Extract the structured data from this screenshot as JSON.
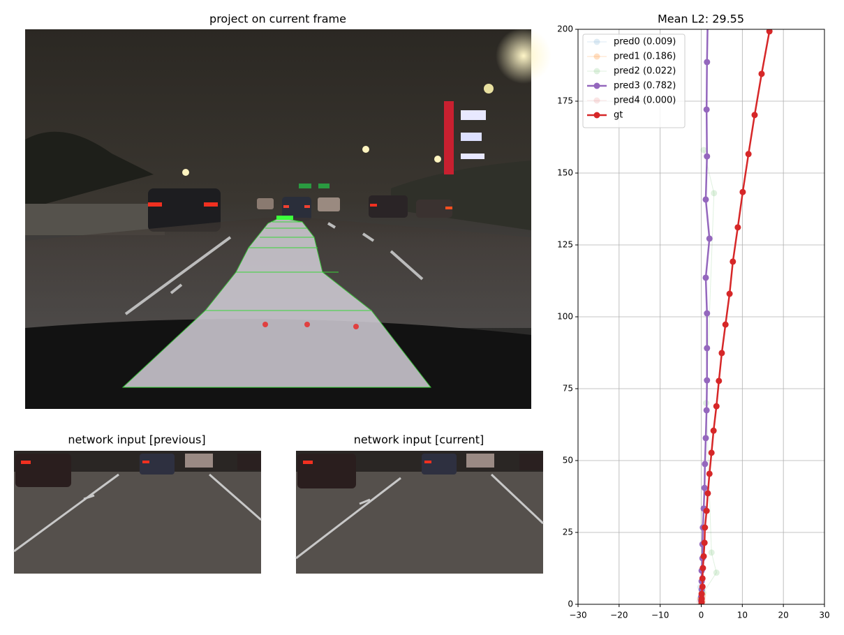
{
  "panels": {
    "main_title": "project on current frame",
    "previous_title": "network input [previous]",
    "current_title": "network input [current]"
  },
  "chart_data": {
    "type": "line",
    "title": "Mean L2: 29.55",
    "xlim": [
      -30,
      30
    ],
    "xticks": [
      {
        "value": -30,
        "label": "−30"
      },
      {
        "value": -20,
        "label": "−20"
      },
      {
        "value": -10,
        "label": "−10"
      },
      0,
      10,
      20,
      30
    ],
    "ylim": [
      0,
      200
    ],
    "yticks": [
      0,
      25,
      50,
      75,
      100,
      125,
      150,
      175,
      200
    ],
    "grid": true,
    "legend": "upper left",
    "series": [
      {
        "name": "pred0 (0.009)",
        "color": "#1f77b4",
        "alpha": 0.15,
        "x": [
          0,
          -0.3,
          0.2,
          -0.2
        ],
        "y": [
          0,
          2,
          4,
          6
        ]
      },
      {
        "name": "pred1 (0.186)",
        "color": "#ff7f0e",
        "alpha": 0.25,
        "x": [
          0,
          0.3,
          -0.2,
          0.4,
          0.1
        ],
        "y": [
          0,
          1,
          2,
          3,
          4
        ]
      },
      {
        "name": "pred2 (0.022)",
        "color": "#2ca02c",
        "alpha": 0.15,
        "x": [
          0,
          0.5,
          3.7,
          2.5,
          1.2,
          3.1,
          0.6
        ],
        "y": [
          0,
          4,
          11,
          18,
          70,
          143,
          158
        ]
      },
      {
        "name": "pred3 (0.782)",
        "color": "#9467bd",
        "alpha": 1,
        "x": [
          0,
          0,
          0.1,
          0.1,
          0.1,
          0.3,
          0.3,
          0.4,
          0.6,
          0.8,
          0.9,
          1.1,
          1.3,
          1.4,
          1.4,
          1.4,
          1.1,
          2.0,
          1.1,
          1.4,
          1.3,
          1.4,
          1.6
        ],
        "y": [
          1.2,
          2.7,
          5.1,
          8.0,
          11.7,
          16.0,
          20.9,
          26.7,
          33.3,
          40.5,
          48.8,
          57.8,
          67.5,
          77.9,
          89.1,
          101.2,
          113.6,
          127.2,
          140.8,
          155.8,
          172.1,
          188.6,
          205
        ]
      },
      {
        "name": "pred4 (0.000)",
        "color": "#d62728",
        "alpha": 0.12,
        "x": [
          0,
          -0.4,
          0.3
        ],
        "y": [
          0,
          1,
          2
        ]
      },
      {
        "name": "gt",
        "color": "#d62728",
        "alpha": 1,
        "x": [
          0.1,
          0.1,
          0.1,
          0.3,
          0.3,
          0.4,
          0.6,
          0.8,
          0.9,
          1.3,
          1.6,
          2.0,
          2.5,
          3.0,
          3.7,
          4.3,
          5.0,
          5.9,
          6.9,
          7.7,
          8.9,
          10.1,
          11.5,
          13.0,
          14.7,
          16.6
        ],
        "y": [
          0.7,
          1.9,
          3.6,
          6.1,
          9.0,
          12.6,
          16.7,
          21.4,
          26.7,
          32.5,
          38.6,
          45.4,
          52.7,
          60.4,
          68.9,
          77.7,
          87.4,
          97.3,
          108,
          119.2,
          131.1,
          143.4,
          156.6,
          170.2,
          184.5,
          199.3
        ]
      }
    ]
  }
}
